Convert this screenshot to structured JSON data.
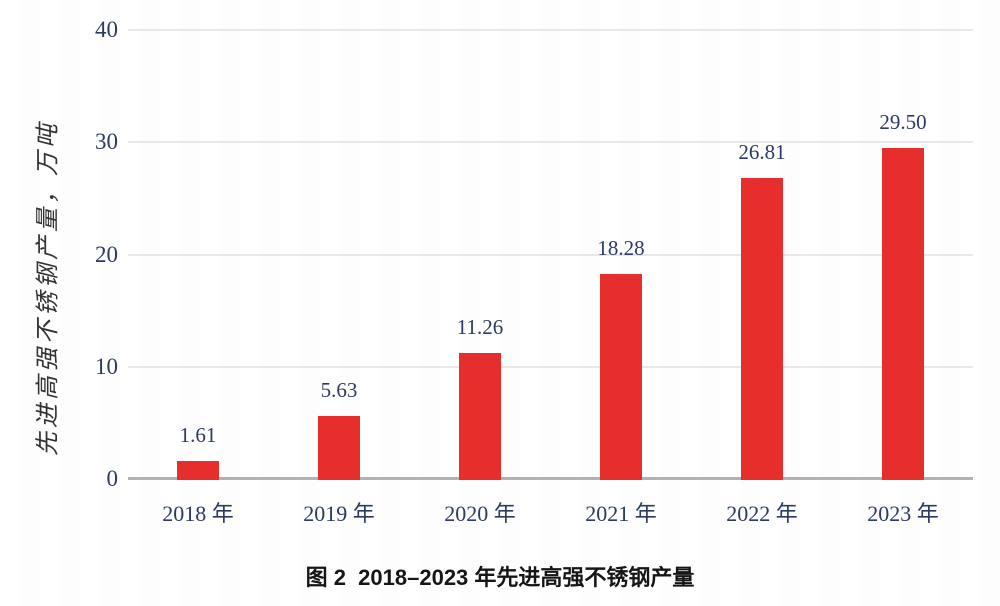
{
  "figure": {
    "caption": "图 2  2018–2023 年先进高强不锈钢产量"
  },
  "chart_data": {
    "type": "bar",
    "title": "图 2 2018–2023 年先进高强不锈钢产量",
    "categories": [
      "2018 年",
      "2019 年",
      "2020 年",
      "2021 年",
      "2022 年",
      "2023 年"
    ],
    "years": [
      "2018",
      "2019",
      "2020",
      "2021",
      "2022",
      "2023"
    ],
    "values": [
      1.61,
      5.63,
      11.26,
      18.28,
      26.81,
      29.5
    ],
    "value_labels": [
      "1.61",
      "5.63",
      "11.26",
      "18.28",
      "26.81",
      "29.50"
    ],
    "xlabel": "",
    "ylabel": "先进高强不锈钢产量，万吨",
    "ylim": [
      0,
      40
    ],
    "yticks": [
      0,
      10,
      20,
      30,
      40
    ],
    "ytick_labels": [
      "0",
      "10",
      "20",
      "30",
      "40"
    ],
    "grid": true,
    "legend_position": "none",
    "bar_color": "#e62e2c",
    "gridline_color": "#e8e8e8",
    "axis_line_color": "#b2b2b2",
    "tick_label_color": "#2c3a64",
    "ylabel_color": "#333333",
    "caption_color": "#161616"
  }
}
